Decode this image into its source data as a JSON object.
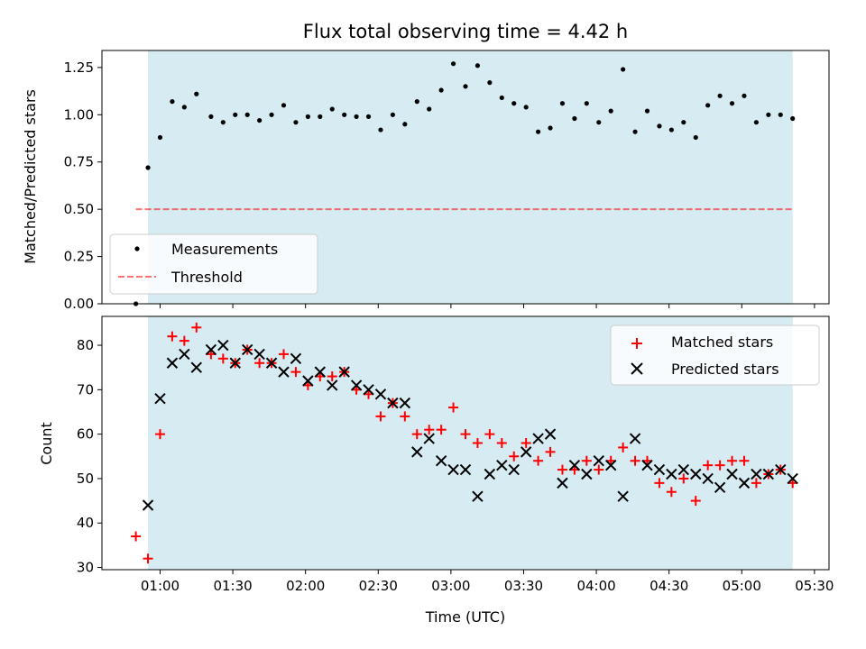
{
  "colors": {
    "observing_window": "#add8e6",
    "measurements": "#000000",
    "threshold": "#ff0000",
    "matched": "#ff0000",
    "predicted": "#000000"
  },
  "chart_data": [
    {
      "type": "scatter",
      "title": "Flux total observing time = 4.42 h",
      "ylabel": "Matched/Predicted stars",
      "xlabel": "",
      "xlim": [
        "00:36",
        "05:36"
      ],
      "ylim": [
        0,
        1.34
      ],
      "yticks": [
        0.0,
        0.25,
        0.5,
        0.75,
        1.0,
        1.25
      ],
      "ytick_labels": [
        "0.00",
        "0.25",
        "0.50",
        "0.75",
        "1.00",
        "1.25"
      ],
      "shaded_span": [
        "00:55",
        "05:21"
      ],
      "grid": false,
      "legend": "bottom-left",
      "legend_entries": [
        "Measurements",
        "Threshold"
      ],
      "threshold": {
        "name": "Threshold",
        "y": 0.5,
        "x_start": "00:50",
        "x_end": "05:21"
      },
      "series": [
        {
          "name": "Measurements",
          "marker": "dot",
          "x": [
            "00:50",
            "00:55",
            "01:00",
            "01:05",
            "01:10",
            "01:15",
            "01:21",
            "01:26",
            "01:31",
            "01:36",
            "01:41",
            "01:46",
            "01:51",
            "01:56",
            "02:01",
            "02:06",
            "02:11",
            "02:16",
            "02:21",
            "02:26",
            "02:31",
            "02:36",
            "02:41",
            "02:46",
            "02:51",
            "02:56",
            "03:01",
            "03:06",
            "03:11",
            "03:16",
            "03:21",
            "03:26",
            "03:31",
            "03:36",
            "03:41",
            "03:46",
            "03:51",
            "03:56",
            "04:01",
            "04:06",
            "04:11",
            "04:16",
            "04:21",
            "04:26",
            "04:31",
            "04:36",
            "04:41",
            "04:46",
            "04:51",
            "04:56",
            "05:01",
            "05:06",
            "05:11",
            "05:16",
            "05:21"
          ],
          "y": [
            0.0,
            0.72,
            0.88,
            1.07,
            1.04,
            1.11,
            0.99,
            0.96,
            1.0,
            1.0,
            0.97,
            1.0,
            1.05,
            0.96,
            0.99,
            0.99,
            1.03,
            1.0,
            0.99,
            0.99,
            0.92,
            1.0,
            0.95,
            1.07,
            1.03,
            1.13,
            1.27,
            1.15,
            1.26,
            1.17,
            1.09,
            1.06,
            1.04,
            0.91,
            0.93,
            1.06,
            0.98,
            1.06,
            0.96,
            1.02,
            1.24,
            0.91,
            1.02,
            0.94,
            0.92,
            0.96,
            0.88,
            1.05,
            1.1,
            1.06,
            1.1,
            0.96,
            1.0,
            1.0,
            0.98
          ]
        }
      ]
    },
    {
      "type": "scatter",
      "title": "",
      "ylabel": "Count",
      "xlabel": "Time (UTC)",
      "xlim": [
        "00:36",
        "05:36"
      ],
      "ylim": [
        29.5,
        86.5
      ],
      "yticks": [
        30,
        40,
        50,
        60,
        70,
        80
      ],
      "ytick_labels": [
        "30",
        "40",
        "50",
        "60",
        "70",
        "80"
      ],
      "xticks": [
        "01:00",
        "01:30",
        "02:00",
        "02:30",
        "03:00",
        "03:30",
        "04:00",
        "04:30",
        "05:00",
        "05:30"
      ],
      "xtick_labels": [
        "01:00",
        "01:30",
        "02:00",
        "02:30",
        "03:00",
        "03:30",
        "04:00",
        "04:30",
        "05:00",
        "05:30"
      ],
      "shaded_span": [
        "00:55",
        "05:21"
      ],
      "grid": false,
      "legend": "top-right",
      "legend_entries": [
        "Matched stars",
        "Predicted stars"
      ],
      "series": [
        {
          "name": "Matched stars",
          "marker": "plus",
          "x": [
            "00:50",
            "00:55",
            "01:00",
            "01:05",
            "01:10",
            "01:15",
            "01:21",
            "01:26",
            "01:31",
            "01:36",
            "01:41",
            "01:46",
            "01:51",
            "01:56",
            "02:01",
            "02:06",
            "02:11",
            "02:16",
            "02:21",
            "02:26",
            "02:31",
            "02:36",
            "02:41",
            "02:46",
            "02:51",
            "02:56",
            "03:01",
            "03:06",
            "03:11",
            "03:16",
            "03:21",
            "03:26",
            "03:31",
            "03:36",
            "03:41",
            "03:46",
            "03:51",
            "03:56",
            "04:01",
            "04:06",
            "04:11",
            "04:16",
            "04:21",
            "04:26",
            "04:31",
            "04:36",
            "04:41",
            "04:46",
            "04:51",
            "04:56",
            "05:01",
            "05:06",
            "05:11",
            "05:16",
            "05:21"
          ],
          "y": [
            37,
            32,
            60,
            82,
            81,
            84,
            78,
            77,
            76,
            79,
            76,
            76,
            78,
            74,
            71,
            73,
            73,
            74,
            70,
            69,
            64,
            67,
            64,
            60,
            61,
            61,
            66,
            60,
            58,
            60,
            58,
            55,
            58,
            54,
            56,
            52,
            52,
            54,
            52,
            54,
            57,
            54,
            54,
            49,
            47,
            50,
            45,
            53,
            53,
            54,
            54,
            49,
            51,
            52,
            49
          ]
        },
        {
          "name": "Predicted stars",
          "marker": "x",
          "x": [
            "00:55",
            "01:00",
            "01:05",
            "01:10",
            "01:15",
            "01:21",
            "01:26",
            "01:31",
            "01:36",
            "01:41",
            "01:46",
            "01:51",
            "01:56",
            "02:01",
            "02:06",
            "02:11",
            "02:16",
            "02:21",
            "02:26",
            "02:31",
            "02:36",
            "02:41",
            "02:46",
            "02:51",
            "02:56",
            "03:01",
            "03:06",
            "03:11",
            "03:16",
            "03:21",
            "03:26",
            "03:31",
            "03:36",
            "03:41",
            "03:46",
            "03:51",
            "03:56",
            "04:01",
            "04:06",
            "04:11",
            "04:16",
            "04:21",
            "04:26",
            "04:31",
            "04:36",
            "04:41",
            "04:46",
            "04:51",
            "04:56",
            "05:01",
            "05:06",
            "05:11",
            "05:16",
            "05:21"
          ],
          "y": [
            44,
            68,
            76,
            78,
            75,
            79,
            80,
            76,
            79,
            78,
            76,
            74,
            77,
            72,
            74,
            71,
            74,
            71,
            70,
            69,
            67,
            67,
            56,
            59,
            54,
            52,
            52,
            46,
            51,
            53,
            52,
            56,
            59,
            60,
            49,
            53,
            51,
            54,
            53,
            46,
            59,
            53,
            52,
            51,
            52,
            51,
            50,
            48,
            51,
            49,
            51,
            51,
            52,
            50
          ]
        }
      ]
    }
  ]
}
